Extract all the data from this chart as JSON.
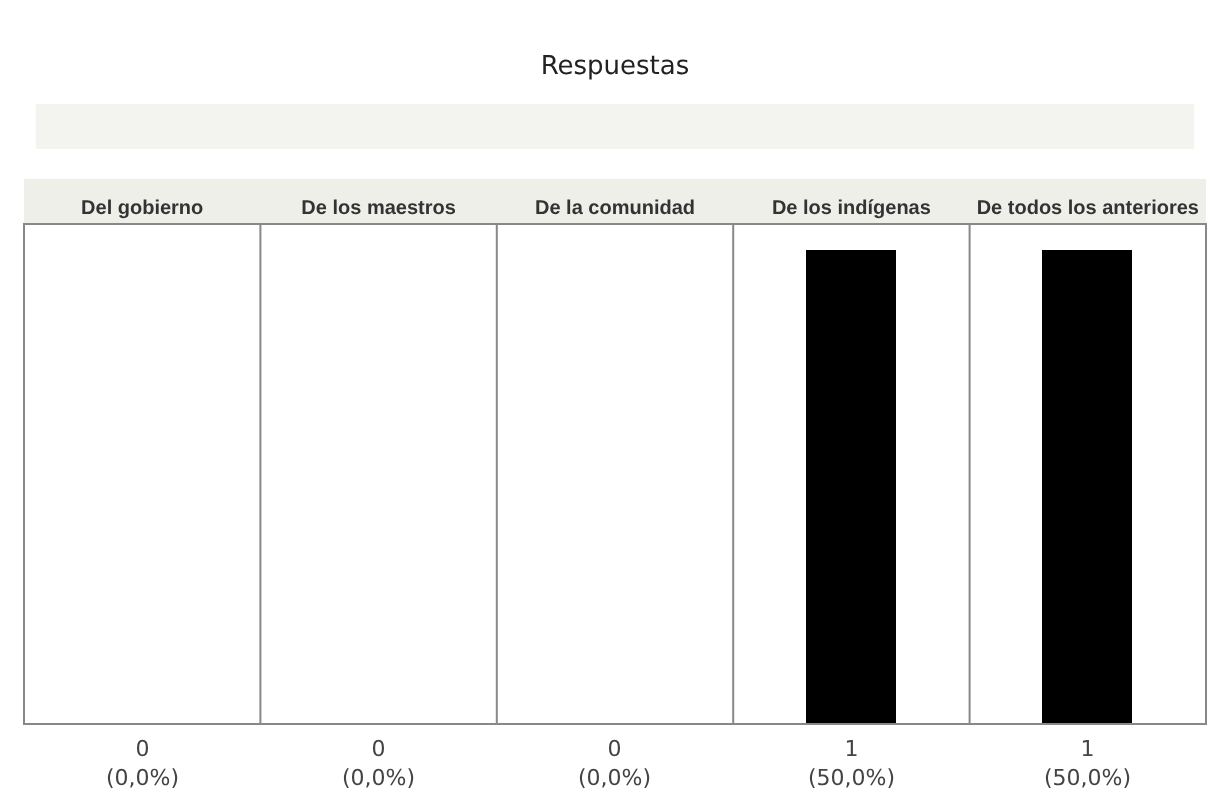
{
  "chart_data": {
    "type": "bar",
    "title": "Respuestas",
    "categories": [
      "Del gobierno",
      "De los maestros",
      "De la comunidad",
      "De los indígenas",
      "De todos los anteriores"
    ],
    "values": [
      0,
      0,
      0,
      1,
      1
    ],
    "color": "#000000",
    "value_labels": [
      "0\n(0,0%)",
      "0\n(0,0%)",
      "0\n(0,0%)",
      "1\n(50,0%)",
      "1\n(50,0%)"
    ],
    "data_labels": false
  }
}
